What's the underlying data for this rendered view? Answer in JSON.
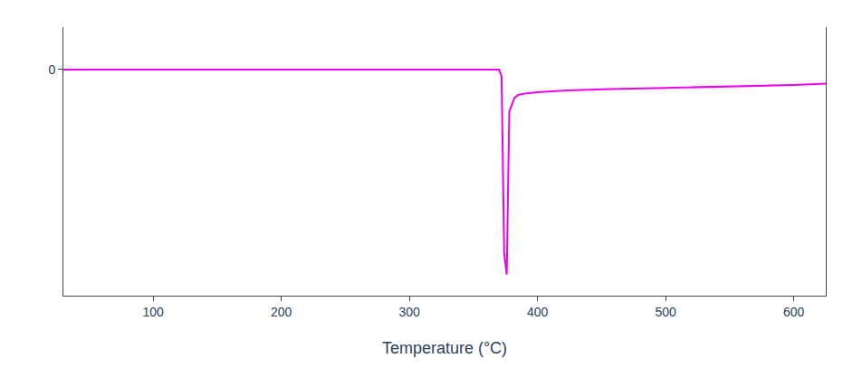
{
  "chart_data": {
    "type": "line",
    "x": [
      30,
      100,
      200,
      300,
      370,
      372,
      374,
      376,
      378,
      382,
      385,
      390,
      400,
      420,
      450,
      500,
      550,
      600,
      625
    ],
    "values": [
      0,
      0,
      0,
      0,
      0,
      -5,
      -130,
      -145,
      -30,
      -20,
      -18,
      -17,
      -16,
      -15,
      -14,
      -13,
      -12,
      -11,
      -10
    ],
    "color": "#EE00EE",
    "xlabel": "Temperature (°C)",
    "xlim": [
      30,
      625
    ],
    "ylim": [
      -160,
      30
    ],
    "xticks": [
      100,
      200,
      300,
      400,
      500,
      600
    ],
    "yticks": [
      0
    ],
    "grid": false
  }
}
